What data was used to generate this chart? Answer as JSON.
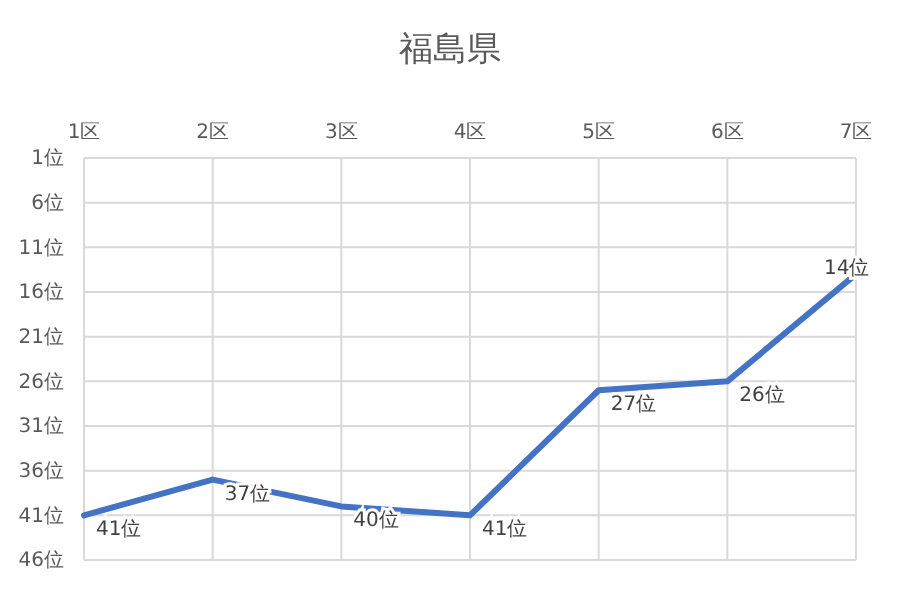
{
  "chart_data": {
    "type": "line",
    "title": "福島県",
    "categories": [
      "1区",
      "2区",
      "3区",
      "4区",
      "5区",
      "6区",
      "7区"
    ],
    "series": [
      {
        "color": "#4472c4",
        "values": [
          41,
          37,
          40,
          41,
          27,
          26,
          14
        ],
        "value_labels": [
          "41位",
          "37位",
          "40位",
          "41位",
          "27位",
          "26位",
          "14位"
        ]
      }
    ],
    "ylim": [
      46,
      1
    ],
    "yticks": [
      {
        "value": 1,
        "label": "1位"
      },
      {
        "value": 6,
        "label": "6位"
      },
      {
        "value": 11,
        "label": "11位"
      },
      {
        "value": 16,
        "label": "16位"
      },
      {
        "value": 21,
        "label": "21位"
      },
      {
        "value": 26,
        "label": "26位"
      },
      {
        "value": 31,
        "label": "31位"
      },
      {
        "value": 36,
        "label": "36位"
      },
      {
        "value": 41,
        "label": "41位"
      },
      {
        "value": 46,
        "label": "46位"
      }
    ],
    "grid": true,
    "marker": "none",
    "line_style": "solid"
  }
}
